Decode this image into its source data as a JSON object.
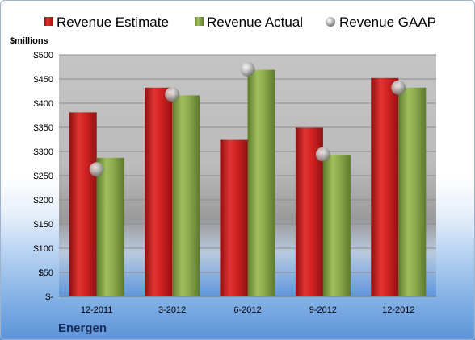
{
  "chart_data": {
    "type": "bar",
    "title": "",
    "ylabel": "$millions",
    "xlabel": "",
    "company": "Energen",
    "categories": [
      "12-2011",
      "3-2012",
      "6-2012",
      "9-2012",
      "12-2012"
    ],
    "series": [
      {
        "name": "Revenue Estimate",
        "kind": "bar",
        "color": "#c81e1e",
        "values": [
          381,
          432,
          324,
          349,
          452
        ]
      },
      {
        "name": "Revenue Actual",
        "kind": "bar",
        "color": "#8aa84a",
        "values": [
          287,
          416,
          469,
          293,
          432
        ]
      },
      {
        "name": "Revenue GAAP",
        "kind": "marker",
        "color": "#b8b8b8",
        "values": [
          263,
          418,
          470,
          294,
          432
        ]
      }
    ],
    "ylim": [
      0,
      500
    ],
    "yticks": [
      0,
      50,
      100,
      150,
      200,
      250,
      300,
      350,
      400,
      450,
      500
    ],
    "ytick_labels": [
      "$-",
      "$50",
      "$100",
      "$150",
      "$200",
      "$250",
      "$300",
      "$350",
      "$400",
      "$450",
      "$500"
    ],
    "grid": true,
    "legend": "top"
  }
}
